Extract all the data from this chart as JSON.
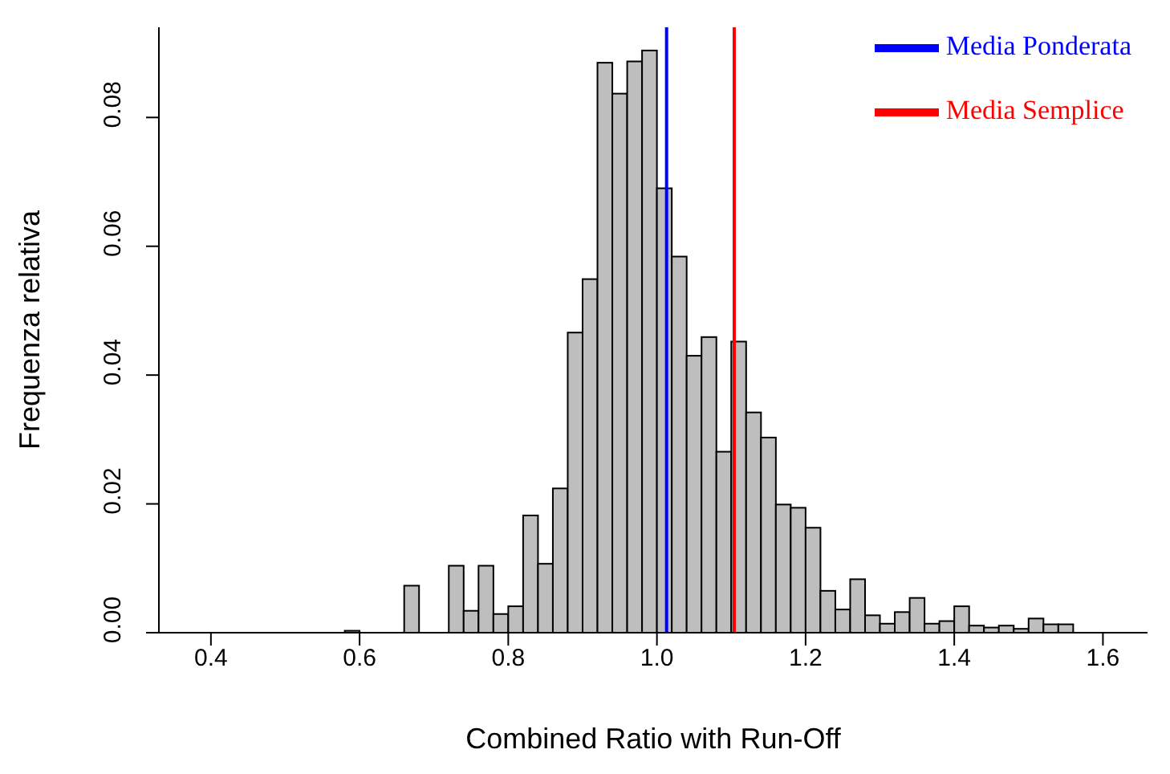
{
  "chart_data": {
    "type": "histogram",
    "xlabel": "Combined Ratio with Run-Off",
    "ylabel": "Frequenza relativa",
    "bins": [
      0.36,
      0.38,
      0.4,
      0.42,
      0.44,
      0.46,
      0.48,
      0.5,
      0.52,
      0.54,
      0.56,
      0.58,
      0.6,
      0.62,
      0.64,
      0.66,
      0.68,
      0.7,
      0.72,
      0.74,
      0.76,
      0.78,
      0.8,
      0.82,
      0.84,
      0.86,
      0.88,
      0.9,
      0.92,
      0.94,
      0.96,
      0.98,
      1.0,
      1.02,
      1.04,
      1.06,
      1.08,
      1.1,
      1.12,
      1.14,
      1.16,
      1.18,
      1.2,
      1.22,
      1.24,
      1.26,
      1.28,
      1.3,
      1.32,
      1.34,
      1.36,
      1.38,
      1.4,
      1.42,
      1.44,
      1.46,
      1.48,
      1.5,
      1.52,
      1.54,
      1.56,
      1.58,
      1.6,
      1.62,
      1.64,
      1.66
    ],
    "values": [
      0,
      0,
      0,
      0,
      0,
      0,
      0,
      0,
      0,
      0,
      0,
      0.0003,
      0,
      0,
      0,
      0.0073,
      0,
      0,
      0.0104,
      0.0034,
      0.0104,
      0.0029,
      0.0041,
      0.0182,
      0.0107,
      0.0224,
      0.0466,
      0.0549,
      0.0885,
      0.0837,
      0.0887,
      0.0904,
      0.069,
      0.0584,
      0.043,
      0.0459,
      0.0281,
      0.0452,
      0.0342,
      0.0303,
      0.0199,
      0.0194,
      0.0163,
      0.0065,
      0.0036,
      0.0083,
      0.0027,
      0.0014,
      0.0032,
      0.0054,
      0.0014,
      0.0018,
      0.0041,
      0.0011,
      0.0008,
      0.0011,
      0.0006,
      0.0022,
      0.0013,
      0.0013,
      0,
      0,
      0,
      0,
      0
    ],
    "color": "#bebebe",
    "xlim": [
      0.33,
      1.66
    ],
    "xticks": [
      {
        "value": 0.4,
        "label": "0.4"
      },
      {
        "value": 0.6,
        "label": "0.6"
      },
      {
        "value": 0.8,
        "label": "0.8"
      },
      {
        "value": 1.0,
        "label": "1.0"
      },
      {
        "value": 1.2,
        "label": "1.2"
      },
      {
        "value": 1.4,
        "label": "1.4"
      },
      {
        "value": 1.6,
        "label": "1.6"
      }
    ],
    "ylim": [
      0,
      0.094
    ],
    "yticks": [
      {
        "value": 0,
        "label": "0.00"
      },
      {
        "value": 0.02,
        "label": "0.02"
      },
      {
        "value": 0.04,
        "label": "0.04"
      },
      {
        "value": 0.06,
        "label": "0.06"
      },
      {
        "value": 0.08,
        "label": "0.08"
      }
    ],
    "ref_lines": [
      {
        "axis": "x",
        "value": 1.013,
        "label": "Media Ponderata",
        "color": "#0000ff"
      },
      {
        "axis": "x",
        "value": 1.104,
        "label": "Media Semplice",
        "color": "#ff0000"
      }
    ],
    "legend": "top right",
    "grid": false
  }
}
